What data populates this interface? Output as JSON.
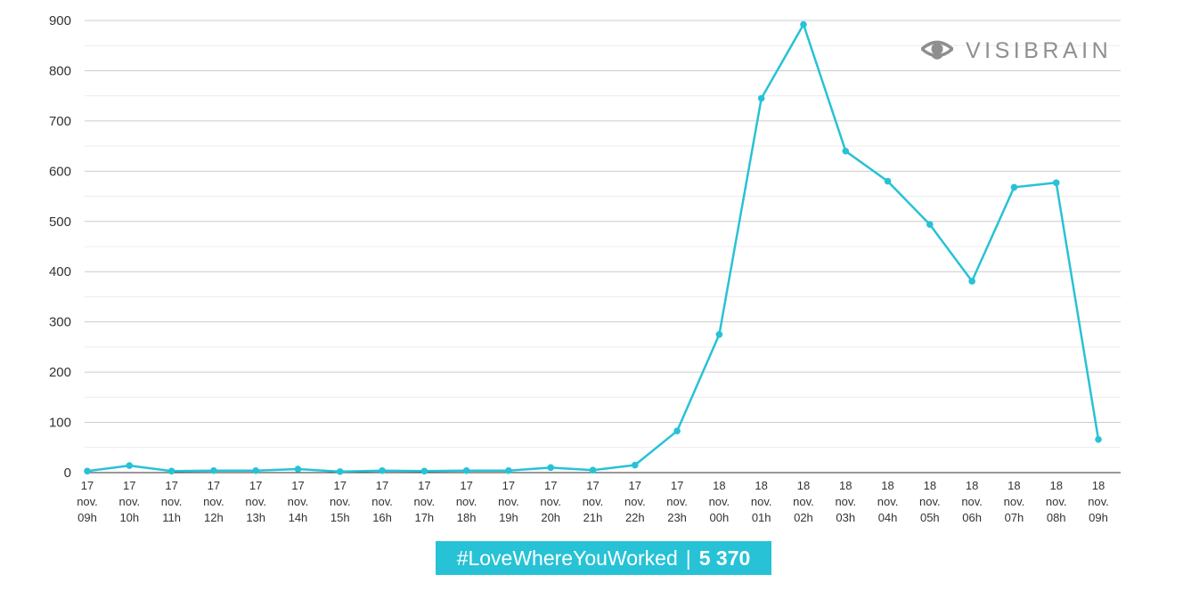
{
  "brand": {
    "logo_text": "VISIBRAIN",
    "logo_icon": "eye-icon",
    "line_color": "#27c2d6",
    "banner_color": "#27c2d6",
    "logo_color": "#8f8f8f",
    "grid_color": "#cccccc"
  },
  "banner": {
    "hashtag": "#LoveWhereYouWorked",
    "separator": "|",
    "total": "5 370"
  },
  "chart_data": {
    "type": "line",
    "title": "",
    "xlabel": "",
    "ylabel": "",
    "ylim": [
      0,
      900
    ],
    "yticks": [
      "0",
      "100",
      "200",
      "300",
      "400",
      "500",
      "600",
      "700",
      "800",
      "900"
    ],
    "grid": true,
    "legend": "none",
    "categories": [
      [
        "17",
        "nov.",
        "09h"
      ],
      [
        "17",
        "nov.",
        "10h"
      ],
      [
        "17",
        "nov.",
        "11h"
      ],
      [
        "17",
        "nov.",
        "12h"
      ],
      [
        "17",
        "nov.",
        "13h"
      ],
      [
        "17",
        "nov.",
        "14h"
      ],
      [
        "17",
        "nov.",
        "15h"
      ],
      [
        "17",
        "nov.",
        "16h"
      ],
      [
        "17",
        "nov.",
        "17h"
      ],
      [
        "17",
        "nov.",
        "18h"
      ],
      [
        "17",
        "nov.",
        "19h"
      ],
      [
        "17",
        "nov.",
        "20h"
      ],
      [
        "17",
        "nov.",
        "21h"
      ],
      [
        "17",
        "nov.",
        "22h"
      ],
      [
        "17",
        "nov.",
        "23h"
      ],
      [
        "18",
        "nov.",
        "00h"
      ],
      [
        "18",
        "nov.",
        "01h"
      ],
      [
        "18",
        "nov.",
        "02h"
      ],
      [
        "18",
        "nov.",
        "03h"
      ],
      [
        "18",
        "nov.",
        "04h"
      ],
      [
        "18",
        "nov.",
        "05h"
      ],
      [
        "18",
        "nov.",
        "06h"
      ],
      [
        "18",
        "nov.",
        "07h"
      ],
      [
        "18",
        "nov.",
        "08h"
      ],
      [
        "18",
        "nov.",
        "09h"
      ]
    ],
    "series": [
      {
        "color": "#27c2d6",
        "values": [
          3,
          14,
          3,
          4,
          4,
          7,
          2,
          4,
          3,
          4,
          4,
          10,
          5,
          15,
          83,
          275,
          745,
          892,
          640,
          580,
          494,
          381,
          568,
          577,
          66
        ]
      }
    ]
  }
}
